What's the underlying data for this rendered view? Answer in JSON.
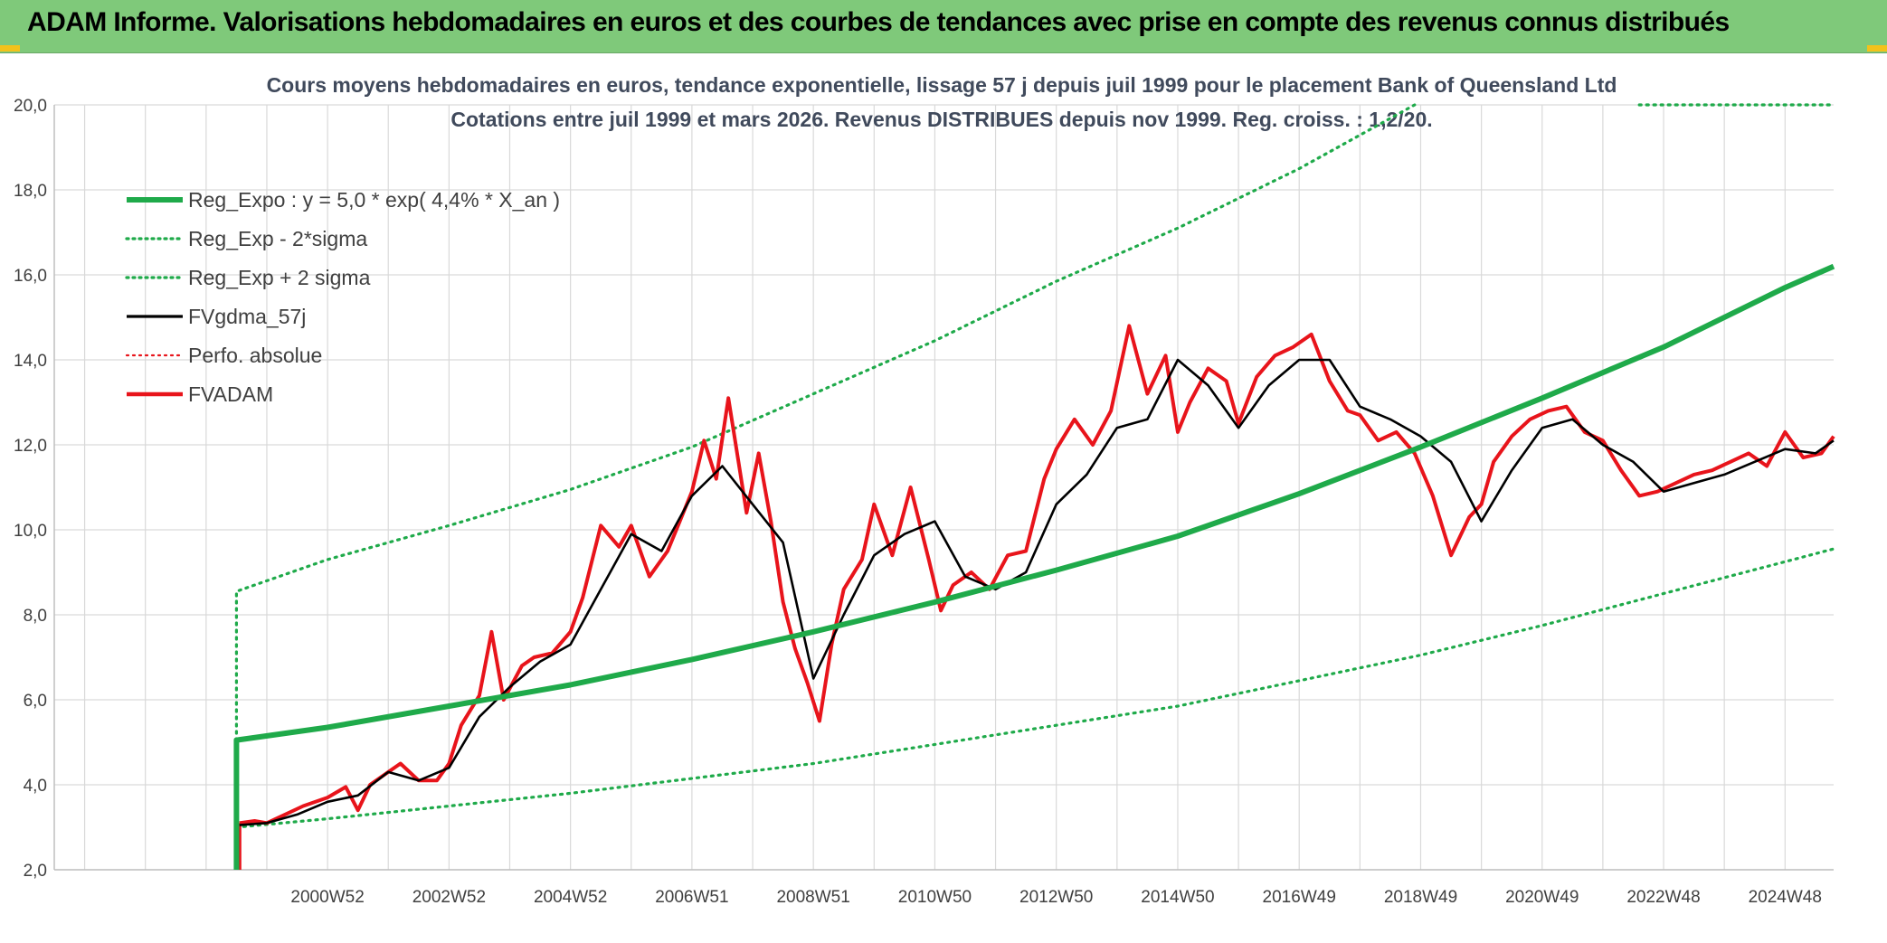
{
  "banner": {
    "title": "ADAM Informe. Valorisations hebdomadaires en euros et des courbes de tendances avec prise en compte des revenus connus distribués"
  },
  "colors": {
    "banner_bg": "#7fc97a",
    "accent_corner": "#f2c21b",
    "trend": "#1faa4a",
    "sigma": "#1faa4a",
    "fvgdma": "#000000",
    "fvadam": "#e8141b",
    "perfo": "#e8141b",
    "grid": "#d9d9d9",
    "title_text": "#404a5c"
  },
  "chart_data": {
    "type": "line",
    "title_line1": "Cours moyens hebdomadaires en euros, tendance exponentielle, lissage 57 j depuis juil 1999 pour le placement Bank of Queensland Ltd",
    "title_line2": "Cotations entre juil 1999 et mars 2026. Revenus DISTRIBUES depuis nov 1999. Reg. croiss. : 1,2/20.",
    "xlabel": "",
    "ylabel": "",
    "x_range_years": [
      1996.5,
      2025.8
    ],
    "ylim": [
      2.0,
      20.0
    ],
    "y_ticks": [
      {
        "value": 2.0,
        "label": "2,0"
      },
      {
        "value": 4.0,
        "label": "4,0"
      },
      {
        "value": 6.0,
        "label": "6,0"
      },
      {
        "value": 8.0,
        "label": "8,0"
      },
      {
        "value": 10.0,
        "label": "10,0"
      },
      {
        "value": 12.0,
        "label": "12,0"
      },
      {
        "value": 14.0,
        "label": "14,0"
      },
      {
        "value": 16.0,
        "label": "16,0"
      },
      {
        "value": 18.0,
        "label": "18,0"
      },
      {
        "value": 20.0,
        "label": "20,0"
      }
    ],
    "x_ticks": [
      {
        "year": 2001.0,
        "label": "2000W52"
      },
      {
        "year": 2003.0,
        "label": "2002W52"
      },
      {
        "year": 2005.0,
        "label": "2004W52"
      },
      {
        "year": 2007.0,
        "label": "2006W51"
      },
      {
        "year": 2009.0,
        "label": "2008W51"
      },
      {
        "year": 2011.0,
        "label": "2010W50"
      },
      {
        "year": 2013.0,
        "label": "2012W50"
      },
      {
        "year": 2015.0,
        "label": "2014W50"
      },
      {
        "year": 2017.0,
        "label": "2016W49"
      },
      {
        "year": 2019.0,
        "label": "2018W49"
      },
      {
        "year": 2021.0,
        "label": "2020W49"
      },
      {
        "year": 2023.0,
        "label": "2022W48"
      },
      {
        "year": 2025.0,
        "label": "2024W48"
      }
    ],
    "legend": {
      "placement": "top-left",
      "entries": [
        {
          "label": "Reg_Expo : y = 5,0 * exp( 4,4% *  X_an )",
          "series": "reg_expo",
          "style": "thick-solid"
        },
        {
          "label": "Reg_Exp - 2*sigma",
          "series": "reg_minus",
          "style": "dotted"
        },
        {
          "label": "Reg_Exp + 2 sigma",
          "series": "reg_plus",
          "style": "dotted"
        },
        {
          "label": "FVgdma_57j",
          "series": "fvgdma",
          "style": "solid"
        },
        {
          "label": "Perfo. absolue",
          "series": "perfo",
          "style": "dotted"
        },
        {
          "label": "FVADAM",
          "series": "fvadam",
          "style": "thick-solid"
        }
      ]
    },
    "trend": {
      "formula": "y = 5.0 * exp(0.044 * X_an)",
      "start_year": 1999.5,
      "end_year": 2025.8,
      "start_value": 5.05,
      "end_value": 16.2
    },
    "series": [
      {
        "name": "Reg_Expo",
        "key": "reg_expo",
        "x": [
          1999.5,
          2001,
          2003,
          2005,
          2007,
          2009,
          2011,
          2013,
          2015,
          2017,
          2019,
          2021,
          2023,
          2025,
          2025.8
        ],
        "values": [
          5.05,
          5.35,
          5.85,
          6.35,
          6.95,
          7.6,
          8.3,
          9.05,
          9.85,
          10.85,
          11.95,
          13.1,
          14.3,
          15.7,
          16.2
        ]
      },
      {
        "name": "Reg_Exp - 2*sigma",
        "key": "reg_minus",
        "x": [
          1999.5,
          2001,
          2003,
          2005,
          2007,
          2009,
          2011,
          2013,
          2015,
          2017,
          2019,
          2021,
          2023,
          2025,
          2025.8
        ],
        "values": [
          3.0,
          3.2,
          3.5,
          3.8,
          4.15,
          4.5,
          4.95,
          5.4,
          5.85,
          6.45,
          7.05,
          7.75,
          8.5,
          9.25,
          9.55
        ]
      },
      {
        "name": "Reg_Exp + 2 sigma",
        "key": "reg_plus",
        "x": [
          1999.5,
          2001,
          2003,
          2005,
          2007,
          2009,
          2011,
          2013,
          2015,
          2017,
          2018.9
        ],
        "values": [
          8.55,
          9.3,
          10.1,
          10.95,
          11.95,
          13.2,
          14.45,
          15.85,
          17.1,
          18.5,
          20.0
        ]
      },
      {
        "name": "Reg_Exp + 2 sigma (plafond)",
        "key": "reg_plus_cap",
        "x": [
          2022.6,
          2025.8
        ],
        "values": [
          20.0,
          20.0
        ]
      },
      {
        "name": "FVgdma_57j",
        "key": "fvgdma",
        "x": [
          1999.55,
          2000.0,
          2000.5,
          2001.0,
          2001.5,
          2002.0,
          2002.5,
          2003.0,
          2003.5,
          2004.0,
          2004.5,
          2005.0,
          2005.5,
          2006.0,
          2006.5,
          2007.0,
          2007.5,
          2008.0,
          2008.5,
          2009.0,
          2009.5,
          2010.0,
          2010.5,
          2011.0,
          2011.5,
          2012.0,
          2012.5,
          2013.0,
          2013.5,
          2014.0,
          2014.5,
          2015.0,
          2015.5,
          2016.0,
          2016.5,
          2017.0,
          2017.5,
          2018.0,
          2018.5,
          2019.0,
          2019.5,
          2020.0,
          2020.5,
          2021.0,
          2021.5,
          2022.0,
          2022.5,
          2023.0,
          2023.5,
          2024.0,
          2024.5,
          2025.0,
          2025.5,
          2025.8
        ],
        "values": [
          3.05,
          3.1,
          3.3,
          3.6,
          3.75,
          4.3,
          4.1,
          4.4,
          5.6,
          6.3,
          6.9,
          7.3,
          8.6,
          9.9,
          9.5,
          10.8,
          11.5,
          10.6,
          9.7,
          6.5,
          8.0,
          9.4,
          9.9,
          10.2,
          8.9,
          8.6,
          9.0,
          10.6,
          11.3,
          12.4,
          12.6,
          14.0,
          13.4,
          12.4,
          13.4,
          14.0,
          14.0,
          12.9,
          12.6,
          12.2,
          11.6,
          10.2,
          11.4,
          12.4,
          12.6,
          12.0,
          11.6,
          10.9,
          11.1,
          11.3,
          11.6,
          11.9,
          11.8,
          12.1
        ]
      },
      {
        "name": "FVADAM",
        "key": "fvadam",
        "x": [
          1999.55,
          1999.8,
          2000.0,
          2000.3,
          2000.6,
          2001.0,
          2001.3,
          2001.5,
          2001.7,
          2002.0,
          2002.2,
          2002.5,
          2002.8,
          2003.0,
          2003.2,
          2003.5,
          2003.7,
          2003.9,
          2004.2,
          2004.4,
          2004.7,
          2005.0,
          2005.2,
          2005.5,
          2005.8,
          2006.0,
          2006.3,
          2006.6,
          2006.8,
          2007.0,
          2007.2,
          2007.4,
          2007.6,
          2007.9,
          2008.1,
          2008.3,
          2008.5,
          2008.7,
          2008.9,
          2009.1,
          2009.3,
          2009.5,
          2009.8,
          2010.0,
          2010.3,
          2010.6,
          2010.9,
          2011.1,
          2011.3,
          2011.6,
          2011.9,
          2012.2,
          2012.5,
          2012.8,
          2013.0,
          2013.3,
          2013.6,
          2013.9,
          2014.2,
          2014.5,
          2014.8,
          2015.0,
          2015.2,
          2015.5,
          2015.8,
          2016.0,
          2016.3,
          2016.6,
          2016.9,
          2017.2,
          2017.5,
          2017.8,
          2018.0,
          2018.3,
          2018.6,
          2018.9,
          2019.2,
          2019.5,
          2019.8,
          2020.0,
          2020.2,
          2020.5,
          2020.8,
          2021.1,
          2021.4,
          2021.7,
          2022.0,
          2022.3,
          2022.6,
          2022.9,
          2023.2,
          2023.5,
          2023.8,
          2024.1,
          2024.4,
          2024.7,
          2025.0,
          2025.3,
          2025.6,
          2025.8
        ],
        "values": [
          3.1,
          3.15,
          3.1,
          3.3,
          3.5,
          3.7,
          3.95,
          3.4,
          4.0,
          4.3,
          4.5,
          4.1,
          4.1,
          4.5,
          5.4,
          6.1,
          7.6,
          6.0,
          6.8,
          7.0,
          7.1,
          7.6,
          8.4,
          10.1,
          9.6,
          10.1,
          8.9,
          9.5,
          10.2,
          10.9,
          12.1,
          11.2,
          13.1,
          10.4,
          11.8,
          10.2,
          8.3,
          7.2,
          6.4,
          5.5,
          7.3,
          8.6,
          9.3,
          10.6,
          9.4,
          11.0,
          9.3,
          8.1,
          8.7,
          9.0,
          8.6,
          9.4,
          9.5,
          11.2,
          11.9,
          12.6,
          12.0,
          12.8,
          14.8,
          13.2,
          14.1,
          12.3,
          13.0,
          13.8,
          13.5,
          12.5,
          13.6,
          14.1,
          14.3,
          14.6,
          13.5,
          12.8,
          12.7,
          12.1,
          12.3,
          11.8,
          10.8,
          9.4,
          10.3,
          10.6,
          11.6,
          12.2,
          12.6,
          12.8,
          12.9,
          12.3,
          12.1,
          11.4,
          10.8,
          10.9,
          11.1,
          11.3,
          11.4,
          11.6,
          11.8,
          11.5,
          12.3,
          11.7,
          11.8,
          12.2
        ]
      },
      {
        "name": "FVADAM (depart)",
        "key": "fvadam_start",
        "x": [
          1999.55,
          1999.55
        ],
        "values": [
          2.0,
          3.1
        ]
      }
    ]
  }
}
